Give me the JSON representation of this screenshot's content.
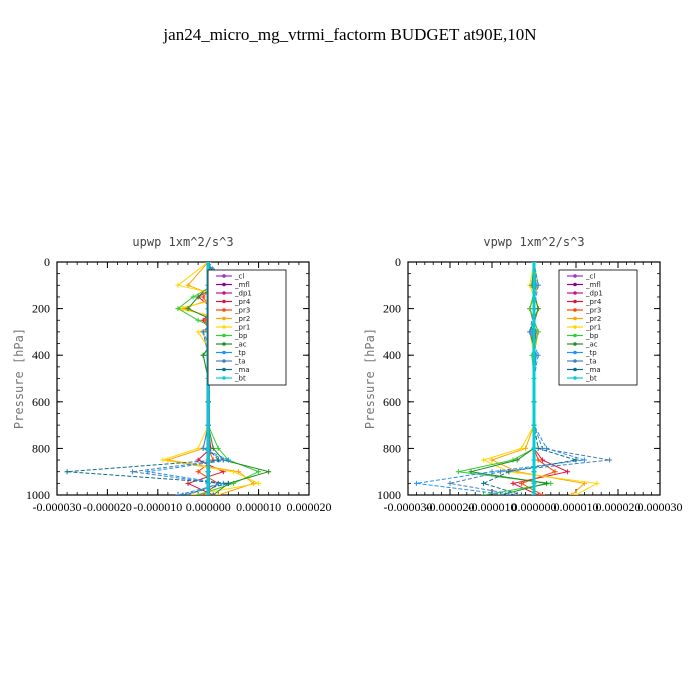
{
  "title": "jan24_micro_mg_vtrmi_factorm  BUDGET at90E,10N",
  "legend_entries": [
    "_cl",
    "_mfl",
    "_dp1",
    "_pr4",
    "_pr3",
    "_pr2",
    "_pr1",
    "_bp",
    "_ac",
    "_tp",
    "_ta",
    "_ma",
    "_bt"
  ],
  "series_colors": {
    "_cl": "#9932cc",
    "_mfl": "#8b008b",
    "_dp1": "#c71585",
    "_pr4": "#dc143c",
    "_pr3": "#ff4500",
    "_pr2": "#ffa500",
    "_pr1": "#ffd700",
    "_bp": "#32cd32",
    "_ac": "#228b22",
    "_tp": "#1e90ff",
    "_ta": "#4682b4",
    "_ma": "#0d6e8c",
    "_bt": "#00ced1"
  },
  "chart_data": [
    {
      "type": "line",
      "title": "upwp   1xm^2/s^3",
      "ylabel": "Pressure [hPa]",
      "xlabel": "",
      "ylim": [
        1000,
        0
      ],
      "xlim": [
        -3e-05,
        2e-05
      ],
      "x_ticks": [
        "-0.000030",
        "-0.000020",
        "-0.000010",
        "0.000000",
        "0.000010",
        "0.000020"
      ],
      "x_tick_values": [
        -3e-05,
        -2e-05,
        -1e-05,
        0,
        1e-05,
        2e-05
      ],
      "y_ticks": [
        0,
        200,
        400,
        600,
        800,
        1000
      ],
      "legend_placement": "top-right",
      "series": [
        {
          "name": "_cl",
          "y": [
            0,
            100,
            200,
            300,
            400,
            500,
            600,
            700,
            800,
            850,
            900,
            950,
            1000
          ],
          "values": [
            0,
            0,
            0,
            0,
            0,
            0,
            0,
            0,
            0,
            0,
            0,
            0,
            0
          ]
        },
        {
          "name": "_mfl",
          "y": [
            0,
            100,
            200,
            300,
            400,
            500,
            600,
            700,
            800,
            850,
            900,
            950,
            1000
          ],
          "values": [
            0,
            0,
            0,
            0,
            0,
            0,
            0,
            0,
            0,
            0,
            0,
            0,
            0
          ]
        },
        {
          "name": "_dp1",
          "y": [
            0,
            100,
            200,
            300,
            400,
            500,
            600,
            700,
            800,
            850,
            900,
            950,
            1000
          ],
          "values": [
            0,
            0,
            0,
            0,
            0,
            0,
            0,
            0,
            0,
            0,
            0,
            0,
            0
          ]
        },
        {
          "name": "_pr4",
          "y": [
            0,
            100,
            150,
            200,
            250,
            300,
            400,
            500,
            600,
            700,
            800,
            850,
            900,
            950,
            1000
          ],
          "values": [
            0,
            5e-07,
            -2e-06,
            1e-06,
            -1e-06,
            5e-07,
            0,
            0,
            0,
            0,
            5e-07,
            -2e-06,
            3e-06,
            -4e-06,
            1e-06
          ]
        },
        {
          "name": "_pr3",
          "y": [
            0,
            100,
            150,
            200,
            250,
            300,
            400,
            500,
            600,
            700,
            800,
            850,
            900,
            950,
            1000
          ],
          "values": [
            0,
            1e-06,
            -1e-06,
            5e-07,
            -5e-07,
            0,
            0,
            0,
            0,
            0,
            0,
            1e-06,
            -2e-06,
            2e-06,
            -1e-06
          ]
        },
        {
          "name": "_pr2",
          "y": [
            0,
            100,
            150,
            200,
            250,
            300,
            400,
            500,
            600,
            700,
            800,
            850,
            900,
            950,
            1000
          ],
          "values": [
            0,
            -4e-06,
            2e-06,
            -5e-06,
            3e-06,
            -1e-06,
            0,
            0,
            0,
            0,
            -1e-06,
            -8e-06,
            6e-06,
            9e-06,
            2e-06
          ]
        },
        {
          "name": "_pr1",
          "y": [
            0,
            100,
            150,
            200,
            250,
            300,
            400,
            500,
            600,
            700,
            800,
            850,
            900,
            950,
            1000
          ],
          "values": [
            0,
            -6e-06,
            4e-06,
            -6e-06,
            5e-06,
            -2e-06,
            1e-06,
            0,
            0,
            0,
            -2e-06,
            -9e-06,
            5e-06,
            1e-05,
            -3e-06
          ]
        },
        {
          "name": "_bp",
          "y": [
            0,
            100,
            150,
            200,
            250,
            300,
            400,
            500,
            600,
            700,
            800,
            850,
            900,
            950,
            1000
          ],
          "values": [
            0,
            1e-06,
            -3e-06,
            -6e-06,
            -2e-06,
            3e-06,
            -1e-06,
            0,
            0,
            0,
            2e-06,
            4e-06,
            1e-05,
            5e-06,
            -2e-06
          ]
        },
        {
          "name": "_ac",
          "y": [
            0,
            100,
            150,
            200,
            250,
            300,
            400,
            500,
            600,
            700,
            800,
            850,
            900,
            950,
            1000
          ],
          "values": [
            0,
            2e-06,
            -2e-06,
            -4e-06,
            1e-06,
            2e-06,
            -1e-06,
            0,
            0,
            0,
            1e-06,
            3e-06,
            1.2e-05,
            4e-06,
            1e-06
          ]
        },
        {
          "name": "_tp",
          "y": [
            0,
            100,
            150,
            200,
            250,
            300,
            400,
            500,
            600,
            700,
            800,
            850,
            900,
            950,
            1000
          ],
          "values": [
            0,
            4e-06,
            6e-06,
            3e-06,
            2e-06,
            -1e-06,
            1e-06,
            0,
            0,
            0,
            -1e-06,
            4e-06,
            -1.2e-05,
            3e-06,
            -6e-06
          ]
        },
        {
          "name": "_ta",
          "y": [
            0,
            100,
            150,
            200,
            250,
            300,
            400,
            500,
            600,
            700,
            800,
            850,
            900,
            950,
            1000
          ],
          "values": [
            0,
            3e-06,
            5e-06,
            4e-06,
            1e-06,
            -1e-06,
            0,
            0,
            0,
            0,
            -1e-06,
            3e-06,
            -1.5e-05,
            2e-06,
            -4e-06
          ]
        },
        {
          "name": "_ma",
          "y": [
            0,
            100,
            150,
            200,
            250,
            300,
            400,
            500,
            600,
            700,
            800,
            850,
            900,
            950,
            1000
          ],
          "values": [
            0,
            2e-06,
            3e-06,
            2e-06,
            1e-06,
            0,
            0,
            0,
            0,
            0,
            0,
            2e-06,
            -2.8e-05,
            4e-06,
            -5e-06
          ]
        },
        {
          "name": "_bt",
          "y": [
            0,
            100,
            200,
            300,
            400,
            500,
            600,
            700,
            800,
            850,
            900,
            950,
            1000
          ],
          "values": [
            0,
            0,
            0,
            0,
            0,
            0,
            0,
            0,
            0,
            0,
            0,
            0,
            0
          ]
        }
      ]
    },
    {
      "type": "line",
      "title": "vpwp   1xm^2/s^3",
      "ylabel": "Pressure [hPa]",
      "xlabel": "",
      "ylim": [
        1000,
        0
      ],
      "xlim": [
        -3e-05,
        3e-05
      ],
      "x_ticks": [
        "-0.000030",
        "-0.000020",
        "-0.000010",
        "0.000000",
        "0.000010",
        "0.000020",
        "0.000030"
      ],
      "x_tick_values": [
        -3e-05,
        -2e-05,
        -1e-05,
        0,
        1e-05,
        2e-05,
        3e-05
      ],
      "y_ticks": [
        0,
        200,
        400,
        600,
        800,
        1000
      ],
      "legend_placement": "top-right",
      "series": [
        {
          "name": "_cl",
          "y": [
            0,
            100,
            200,
            300,
            400,
            500,
            600,
            700,
            800,
            850,
            900,
            950,
            1000
          ],
          "values": [
            0,
            0,
            0,
            0,
            0,
            0,
            0,
            0,
            0,
            0,
            0,
            0,
            0
          ]
        },
        {
          "name": "_mfl",
          "y": [
            0,
            100,
            200,
            300,
            400,
            500,
            600,
            700,
            800,
            850,
            900,
            950,
            1000
          ],
          "values": [
            0,
            0,
            0,
            0,
            0,
            0,
            0,
            0,
            0,
            0,
            0,
            0,
            0
          ]
        },
        {
          "name": "_dp1",
          "y": [
            0,
            100,
            200,
            300,
            400,
            500,
            600,
            700,
            800,
            850,
            900,
            950,
            1000
          ],
          "values": [
            0,
            0,
            0,
            0,
            0,
            0,
            0,
            0,
            0,
            0,
            0,
            0,
            0
          ]
        },
        {
          "name": "_pr4",
          "y": [
            0,
            100,
            200,
            300,
            400,
            500,
            600,
            700,
            800,
            850,
            900,
            950,
            1000
          ],
          "values": [
            0,
            5e-07,
            -1e-06,
            5e-07,
            0,
            0,
            0,
            0,
            0,
            2e-06,
            8e-06,
            -5e-06,
            1e-06
          ]
        },
        {
          "name": "_pr3",
          "y": [
            0,
            100,
            200,
            300,
            400,
            500,
            600,
            700,
            800,
            850,
            900,
            950,
            1000
          ],
          "values": [
            0,
            -5e-07,
            1e-06,
            -5e-07,
            0,
            0,
            0,
            0,
            0,
            1e-06,
            5e-06,
            -3e-06,
            2e-06
          ]
        },
        {
          "name": "_pr2",
          "y": [
            0,
            100,
            200,
            300,
            400,
            500,
            600,
            700,
            800,
            850,
            900,
            950,
            1000
          ],
          "values": [
            0,
            1e-06,
            -1e-06,
            1e-06,
            0,
            0,
            0,
            0,
            -2e-06,
            -1e-05,
            -4e-06,
            1.2e-05,
            9e-06
          ]
        },
        {
          "name": "_pr1",
          "y": [
            0,
            100,
            200,
            300,
            400,
            500,
            600,
            700,
            800,
            850,
            900,
            950,
            1000
          ],
          "values": [
            0,
            -1e-06,
            1e-06,
            -1e-06,
            0,
            0,
            0,
            0,
            -3e-06,
            -1.2e-05,
            -6e-06,
            1.5e-05,
            1e-05
          ]
        },
        {
          "name": "_bp",
          "y": [
            0,
            100,
            200,
            300,
            400,
            500,
            600,
            700,
            800,
            850,
            900,
            950,
            1000
          ],
          "values": [
            0,
            5e-07,
            -1e-06,
            1e-06,
            -5e-07,
            0,
            0,
            0,
            0,
            -5e-06,
            -1.8e-05,
            4e-06,
            -1.2e-05
          ]
        },
        {
          "name": "_ac",
          "y": [
            0,
            100,
            200,
            300,
            400,
            500,
            600,
            700,
            800,
            850,
            900,
            950,
            1000
          ],
          "values": [
            0,
            -5e-07,
            1e-06,
            -1e-06,
            5e-07,
            0,
            0,
            0,
            0,
            -4e-06,
            -1.5e-05,
            3e-06,
            -8e-06
          ]
        },
        {
          "name": "_tp",
          "y": [
            0,
            100,
            200,
            300,
            400,
            500,
            600,
            700,
            800,
            850,
            900,
            950,
            1000
          ],
          "values": [
            0,
            1e-06,
            0,
            -1e-06,
            1e-06,
            0,
            0,
            0,
            3e-06,
            1.2e-05,
            -1e-05,
            -2.8e-05,
            -6e-06
          ]
        },
        {
          "name": "_ta",
          "y": [
            0,
            100,
            200,
            300,
            400,
            500,
            600,
            700,
            800,
            850,
            900,
            950,
            1000
          ],
          "values": [
            0,
            5e-07,
            0,
            -5e-07,
            5e-07,
            0,
            0,
            0,
            2e-06,
            1.8e-05,
            -8e-06,
            -2e-05,
            -4e-06
          ]
        },
        {
          "name": "_ma",
          "y": [
            0,
            100,
            200,
            300,
            400,
            500,
            600,
            700,
            800,
            850,
            900,
            950,
            1000
          ],
          "values": [
            0,
            0,
            0,
            0,
            0,
            0,
            0,
            0,
            1e-06,
            1e-05,
            -6e-06,
            -1.2e-05,
            -3e-06
          ]
        },
        {
          "name": "_bt",
          "y": [
            0,
            100,
            200,
            300,
            400,
            500,
            600,
            700,
            800,
            850,
            900,
            950,
            1000
          ],
          "values": [
            0,
            0,
            0,
            0,
            0,
            0,
            0,
            0,
            0,
            0,
            0,
            0,
            0
          ]
        }
      ]
    }
  ]
}
